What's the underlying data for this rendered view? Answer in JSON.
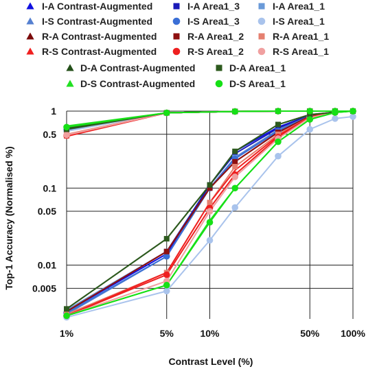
{
  "chart_data": {
    "type": "line",
    "title": "",
    "xlabel": "Contrast Level (%)",
    "ylabel": "Top-1 Accuracy  (Normalised %)",
    "xscale": "log",
    "yscale": "log",
    "xlim": [
      1,
      100
    ],
    "ylim": [
      0.002,
      1
    ],
    "grid": true,
    "legend_position": "top",
    "x_tick_labels": [
      "1%",
      "5%",
      "10%",
      "50%",
      "100%"
    ],
    "x_ticks": [
      1,
      5,
      10,
      50,
      100
    ],
    "y_tick_labels": [
      "1",
      "0.5",
      "0.1",
      "0.05",
      "0.01",
      "0.005"
    ],
    "y_ticks": [
      1,
      0.5,
      0.1,
      0.05,
      0.01,
      0.005
    ],
    "x": [
      1,
      5,
      10,
      15,
      30,
      50,
      75,
      100
    ],
    "series": [
      {
        "name": "I-A Contrast-Augmented",
        "color": "#1010e0",
        "marker": "triangle",
        "values": [
          0.0025,
          0.014,
          0.11,
          0.3,
          0.62,
          0.88,
          0.97,
          1.0
        ]
      },
      {
        "name": "I-A Area1_3",
        "color": "#1a1ab8",
        "marker": "square",
        "values": [
          0.0026,
          0.015,
          0.11,
          0.28,
          0.6,
          0.88,
          0.97,
          1.0
        ]
      },
      {
        "name": "I-A Area1_1",
        "color": "#6a9ad8",
        "marker": "square",
        "values": [
          0.0026,
          0.015,
          0.1,
          0.25,
          0.55,
          0.86,
          0.97,
          1.0
        ]
      },
      {
        "name": "I-S Contrast-Augmented",
        "color": "#5580d0",
        "marker": "triangle",
        "values": [
          0.0023,
          0.013,
          0.1,
          0.25,
          0.57,
          0.86,
          0.97,
          1.0
        ]
      },
      {
        "name": "I-S Area1_3",
        "color": "#3a6fd6",
        "marker": "circle",
        "values": [
          0.0024,
          0.013,
          0.1,
          0.24,
          0.55,
          0.86,
          0.97,
          1.0
        ]
      },
      {
        "name": "I-S Area1_1",
        "color": "#a9c3ec",
        "marker": "circle",
        "values": [
          0.0021,
          0.0046,
          0.021,
          0.056,
          0.26,
          0.58,
          0.8,
          0.85
        ]
      },
      {
        "name": "R-A Contrast-Augmented",
        "color": "#7a0a0a",
        "marker": "triangle",
        "values": [
          0.0025,
          0.015,
          0.1,
          0.22,
          0.53,
          0.86,
          0.97,
          1.0
        ]
      },
      {
        "name": "R-A Area1_2",
        "color": "#8e1010",
        "marker": "square",
        "values": [
          0.0025,
          0.015,
          0.1,
          0.22,
          0.53,
          0.86,
          0.97,
          1.0
        ]
      },
      {
        "name": "R-A Area1_1",
        "color": "#e58070",
        "marker": "square",
        "values": [
          0.0023,
          0.008,
          0.065,
          0.19,
          0.5,
          0.84,
          0.97,
          1.0
        ]
      },
      {
        "name": "R-S Contrast-Augmented",
        "color": "#f02020",
        "marker": "triangle",
        "values": [
          0.0022,
          0.008,
          0.065,
          0.17,
          0.48,
          0.84,
          0.97,
          1.0
        ]
      },
      {
        "name": "R-S Area1_2",
        "color": "#ee2020",
        "marker": "circle",
        "values": [
          0.0022,
          0.0075,
          0.055,
          0.15,
          0.46,
          0.83,
          0.97,
          1.0
        ]
      },
      {
        "name": "R-S Area1_1",
        "color": "#f0a0a0",
        "marker": "circle",
        "values": [
          0.0022,
          0.0062,
          0.05,
          0.14,
          0.44,
          0.82,
          0.96,
          1.0
        ]
      },
      {
        "name": "D-A Contrast-Augmented",
        "color": "#24501a",
        "marker": "triangle",
        "values": [
          0.0027,
          0.022,
          0.11,
          0.3,
          0.67,
          0.9,
          0.97,
          1.0
        ]
      },
      {
        "name": "D-A Area1_1",
        "color": "#2d5a1e",
        "marker": "square",
        "values": [
          0.0027,
          0.022,
          0.11,
          0.3,
          0.67,
          0.9,
          0.97,
          1.0
        ]
      },
      {
        "name": "D-S Contrast-Augmented",
        "color": "#22e022",
        "marker": "triangle",
        "values": [
          0.0022,
          0.0055,
          0.038,
          0.1,
          0.4,
          0.78,
          0.96,
          1.0
        ]
      },
      {
        "name": "D-S Area1_1",
        "color": "#16e016",
        "marker": "circle",
        "values": [
          0.0022,
          0.0055,
          0.036,
          0.1,
          0.4,
          0.78,
          0.96,
          1.0
        ]
      }
    ],
    "start_values": {
      "I-A Contrast-Augmented": 0.58,
      "I-A Area1_3": 0.56,
      "I-A Area1_1": 0.55,
      "I-S Contrast-Augmented": 0.6,
      "I-S Area1_3": 0.57,
      "I-S Area1_1": 0.55,
      "R-A Contrast-Augmented": 0.49,
      "R-A Area1_2": 0.48,
      "R-A Area1_1": 0.5,
      "R-S Contrast-Augmented": 0.47,
      "R-S Area1_2": 0.48,
      "R-S Area1_1": 0.49,
      "D-A Contrast-Augmented": 0.6,
      "D-A Area1_1": 0.58,
      "D-S Contrast-Augmented": 0.64,
      "D-S Area1_1": 0.62
    },
    "upper_values_x": [
      1,
      5,
      15,
      30,
      50,
      75,
      100
    ],
    "upper_values": [
      0.55,
      0.95,
      0.99,
      1.0,
      1.0,
      1.0,
      1.0
    ]
  }
}
